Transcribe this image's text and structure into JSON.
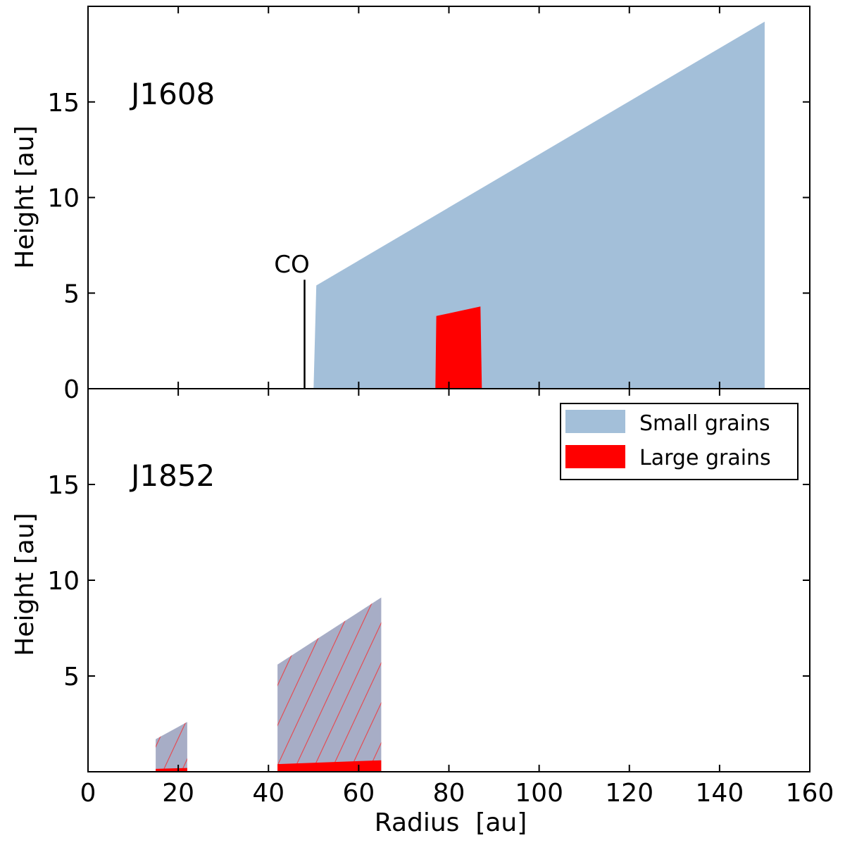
{
  "chart_data": [
    {
      "type": "area",
      "panel": "top",
      "title": "J1608",
      "xlabel": "",
      "ylabel": "Height [au]",
      "xlim": [
        0,
        160
      ],
      "ylim": [
        0,
        20
      ],
      "yticks": [
        0,
        5,
        10,
        15
      ],
      "ytick_labels": [
        "0",
        "5",
        "10",
        "15"
      ],
      "grid": false,
      "series": [
        {
          "name": "Small grains",
          "color": "#a3bfd9",
          "polygon": [
            [
              50,
              0
            ],
            [
              50.6,
              5.4
            ],
            [
              150,
              19.2
            ],
            [
              150,
              0
            ]
          ]
        },
        {
          "name": "Large grains",
          "color": "#ff0000",
          "polygon": [
            [
              77,
              0
            ],
            [
              77.2,
              3.8
            ],
            [
              87,
              4.3
            ],
            [
              87.3,
              0
            ]
          ]
        }
      ],
      "annotations": [
        {
          "text": "CO",
          "x": 48,
          "y_start": 0,
          "y_end": 5.7
        }
      ]
    },
    {
      "type": "area",
      "panel": "bottom",
      "title": "J1852",
      "xlabel": "Radius  [au]",
      "ylabel": "Height [au]",
      "xlim": [
        0,
        160
      ],
      "ylim": [
        0,
        20
      ],
      "xticks": [
        0,
        20,
        40,
        60,
        80,
        100,
        120,
        140,
        160
      ],
      "xtick_labels": [
        "0",
        "20",
        "40",
        "60",
        "80",
        "100",
        "120",
        "140",
        "160"
      ],
      "yticks": [
        5,
        10,
        15
      ],
      "ytick_labels": [
        "5",
        "10",
        "15"
      ],
      "grid": false,
      "legend_position": "top-right",
      "legend": [
        {
          "label": "Small grains",
          "color": "#a3bfd9"
        },
        {
          "label": "Large grains",
          "color": "#ff0000"
        }
      ],
      "series": [
        {
          "name": "Small grains",
          "color": "#a7adc6",
          "hatch": "#e8444a",
          "rings": [
            [
              [
                15,
                0
              ],
              [
                15,
                1.7
              ],
              [
                22,
                2.6
              ],
              [
                22,
                0
              ]
            ],
            [
              [
                42,
                0
              ],
              [
                42,
                5.6
              ],
              [
                65,
                9.1
              ],
              [
                65,
                0
              ]
            ]
          ]
        },
        {
          "name": "Large grains",
          "color": "#ff0000",
          "rings": [
            [
              [
                15,
                0
              ],
              [
                15,
                0.15
              ],
              [
                22,
                0.2
              ],
              [
                22,
                0
              ]
            ],
            [
              [
                42,
                0
              ],
              [
                42,
                0.4
              ],
              [
                65,
                0.6
              ],
              [
                65,
                0
              ]
            ]
          ]
        }
      ]
    }
  ]
}
